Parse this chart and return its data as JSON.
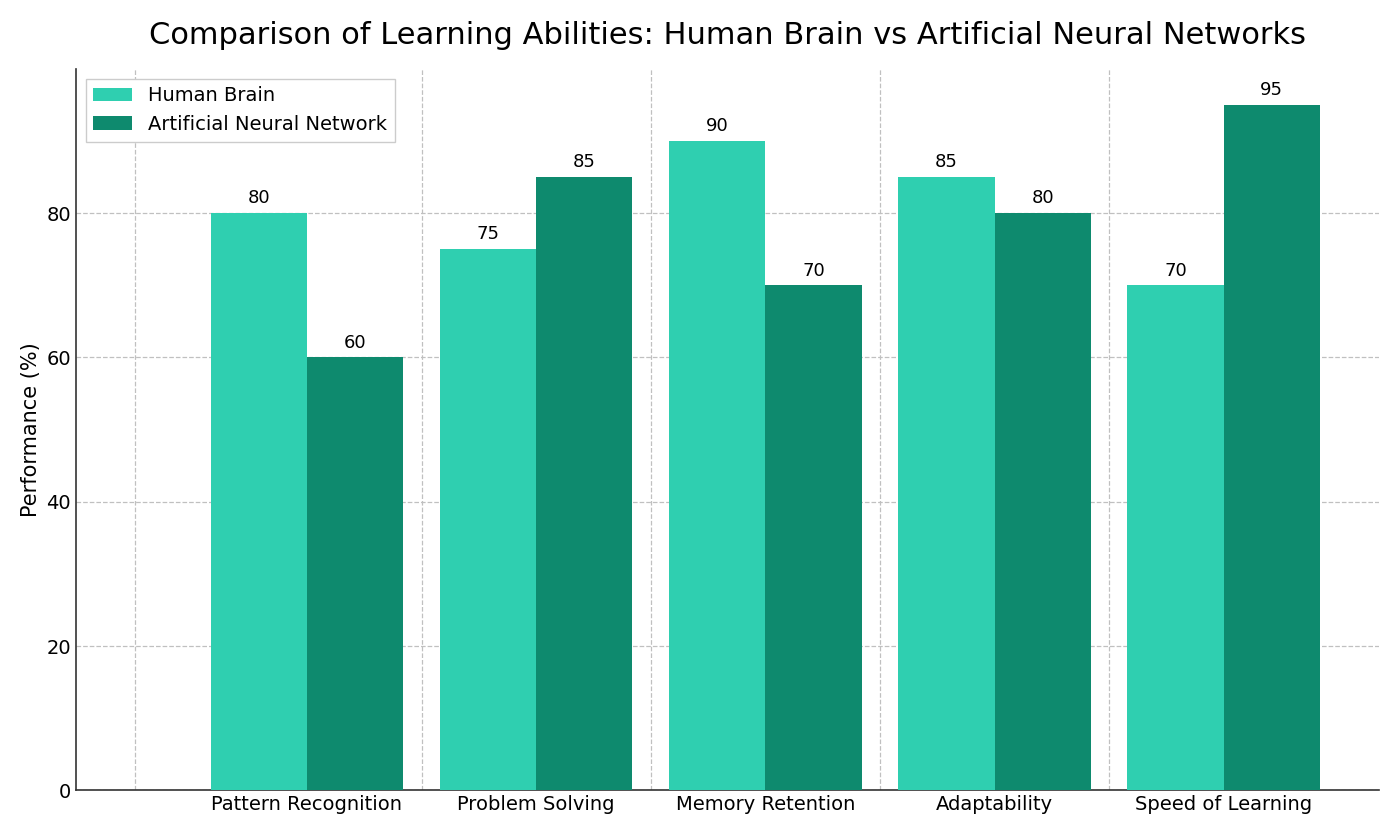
{
  "title": "Comparison of Learning Abilities: Human Brain vs Artificial Neural Networks",
  "categories": [
    "Pattern Recognition",
    "Problem Solving",
    "Memory Retention",
    "Adaptability",
    "Speed of Learning"
  ],
  "human_brain": [
    80,
    75,
    90,
    85,
    70
  ],
  "neural_network": [
    60,
    85,
    70,
    80,
    95
  ],
  "ylabel": "Performance (%)",
  "ylim": [
    0,
    100
  ],
  "yticks": [
    0,
    20,
    40,
    60,
    80
  ],
  "color_human": "#2fcfb0",
  "color_ann": "#0e8a6e",
  "legend_labels": [
    "Human Brain",
    "Artificial Neural Network"
  ],
  "bar_width": 0.42,
  "title_fontsize": 22,
  "axis_label_fontsize": 15,
  "tick_fontsize": 14,
  "legend_fontsize": 14,
  "annotation_fontsize": 13,
  "background_color": "#ffffff",
  "grid_color": "#c0c0c0",
  "spine_color": "#888888"
}
